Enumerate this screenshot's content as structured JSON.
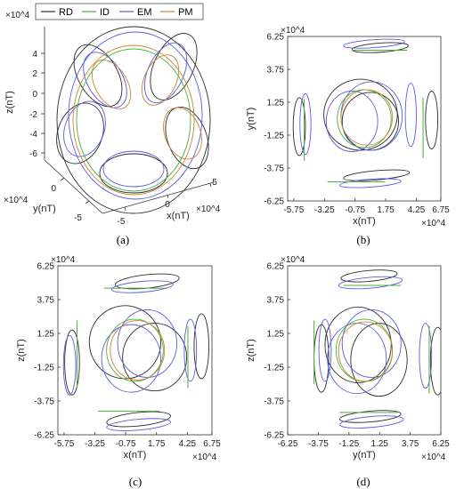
{
  "legend": [
    {
      "label": "RD",
      "color": "#2b2b2b"
    },
    {
      "label": "ID",
      "color": "#4caf3d"
    },
    {
      "label": "EM",
      "color": "#5a5ae6"
    },
    {
      "label": "PM",
      "color": "#c8862e"
    }
  ],
  "chart_data": [
    {
      "type": "line",
      "panel": "(a)",
      "caption": "(a)",
      "projection": "3d",
      "xlabel": "x(nT)",
      "ylabel": "y(nT)",
      "zlabel": "z(nT)",
      "x_ticks": [
        "-5",
        "0",
        "5"
      ],
      "y_ticks": [
        "-5",
        "0"
      ],
      "z_ticks": [
        "4",
        "2",
        "0",
        "-2",
        "-4",
        "-6"
      ],
      "x_multiplier": "×10^4",
      "y_multiplier": "×10^4",
      "z_multiplier": "×10^4",
      "series": [
        {
          "name": "RD",
          "color": "#2b2b2b"
        },
        {
          "name": "ID",
          "color": "#4caf3d"
        },
        {
          "name": "EM",
          "color": "#5a5ae6"
        },
        {
          "name": "PM",
          "color": "#c8862e"
        }
      ]
    },
    {
      "type": "line",
      "panel": "(b)",
      "caption": "(b)",
      "xlabel": "x(nT)",
      "ylabel": "y(nT)",
      "x_multiplier": "×10^4",
      "y_multiplier": "×10^4",
      "xlim": [
        -6.25,
        6.25
      ],
      "ylim": [
        -6.25,
        6.25
      ],
      "x_ticks": [
        "-5.75",
        "-3.25",
        "-0.75",
        "1.75",
        "4.25",
        "6.75"
      ],
      "y_ticks": [
        "6.25",
        "3.75",
        "1.25",
        "-1.25",
        "-3.75",
        "-6.25"
      ],
      "x_tick_values": [
        -5.75,
        -3.25,
        -0.75,
        1.75,
        4.25,
        6.75
      ],
      "y_tick_values": [
        6.25,
        3.75,
        1.25,
        -1.25,
        -3.75,
        -6.25
      ],
      "ellipses": [
        {
          "s": "RD",
          "cx": -0.3,
          "cy": 0.3,
          "rx": 3.0,
          "ry": 2.7,
          "rot": 0
        },
        {
          "s": "RD",
          "cx": 0.5,
          "cy": -0.2,
          "rx": 2.3,
          "ry": 2.2,
          "rot": 0
        },
        {
          "s": "RD",
          "cx": 5.5,
          "cy": -0.1,
          "rx": 0.5,
          "ry": 2.2,
          "rot": 0
        },
        {
          "s": "RD",
          "cx": -5.3,
          "cy": -0.6,
          "rx": 0.5,
          "ry": 2.2,
          "rot": 0
        },
        {
          "s": "RD",
          "cx": 1.3,
          "cy": 5.4,
          "rx": 2.3,
          "ry": 0.35,
          "rot": -4
        },
        {
          "s": "RD",
          "cx": 1.0,
          "cy": -4.3,
          "rx": 2.7,
          "ry": 0.35,
          "rot": -5
        },
        {
          "s": "EM",
          "cx": 0.6,
          "cy": 0.2,
          "rx": 2.5,
          "ry": 2.6,
          "rot": 0
        },
        {
          "s": "EM",
          "cx": -1.0,
          "cy": -0.2,
          "rx": 2.1,
          "ry": 2.3,
          "rot": 0
        },
        {
          "s": "EM",
          "cx": 3.8,
          "cy": 0.3,
          "rx": 0.45,
          "ry": 2.4,
          "rot": 0
        },
        {
          "s": "EM",
          "cx": -4.8,
          "cy": -0.4,
          "rx": 0.45,
          "ry": 2.3,
          "rot": 0
        },
        {
          "s": "EM",
          "cx": 0.8,
          "cy": 5.7,
          "rx": 2.5,
          "ry": 0.3,
          "rot": -4
        },
        {
          "s": "EM",
          "cx": 0.5,
          "cy": -4.9,
          "rx": 2.5,
          "ry": 0.3,
          "rot": -4
        },
        {
          "s": "ID",
          "cx": 0.0,
          "cy": 0.0,
          "rx": 2.2,
          "ry": 2.2,
          "rot": 0
        },
        {
          "s": "PM",
          "cx": 0.2,
          "cy": 0.1,
          "rx": 2.1,
          "ry": 2.1,
          "rot": 0
        }
      ],
      "lines": [
        {
          "s": "ID",
          "x1": -4.9,
          "y1": 1.5,
          "x2": -4.9,
          "y2": -3.2
        },
        {
          "s": "ID",
          "x1": 4.8,
          "y1": 1.6,
          "x2": 4.8,
          "y2": -3.0
        },
        {
          "s": "ID",
          "x1": -1.0,
          "y1": 5.2,
          "x2": 3.5,
          "y2": 5.2
        },
        {
          "s": "ID",
          "x1": -3.0,
          "y1": -4.8,
          "x2": 1.7,
          "y2": -4.8
        }
      ]
    },
    {
      "type": "line",
      "panel": "(c)",
      "caption": "(c)",
      "xlabel": "x(nT)",
      "ylabel": "z(nT)",
      "x_multiplier": "×10^4",
      "y_multiplier": "×10^4",
      "xlim": [
        -6.25,
        6.25
      ],
      "ylim": [
        -6.25,
        6.25
      ],
      "x_ticks": [
        "-5.75",
        "-3.25",
        "-0.75",
        "1.75",
        "4.25",
        "6.75"
      ],
      "y_ticks": [
        "6.25",
        "3.75",
        "1.25",
        "-1.25",
        "-3.75",
        "-6.25"
      ],
      "x_tick_values": [
        -5.75,
        -3.25,
        -0.75,
        1.75,
        4.25,
        6.75
      ],
      "y_tick_values": [
        6.25,
        3.75,
        1.25,
        -1.25,
        -3.75,
        -6.25
      ],
      "ellipses": [
        {
          "s": "RD",
          "cx": -0.8,
          "cy": 0.6,
          "rx": 2.9,
          "ry": 2.7,
          "rot": 0
        },
        {
          "s": "RD",
          "cx": 1.6,
          "cy": -0.5,
          "rx": 2.6,
          "ry": 2.5,
          "rot": 0
        },
        {
          "s": "RD",
          "cx": 5.4,
          "cy": 0.3,
          "rx": 0.6,
          "ry": 2.4,
          "rot": 0
        },
        {
          "s": "RD",
          "cx": -5.1,
          "cy": -0.9,
          "rx": 0.6,
          "ry": 2.4,
          "rot": 0
        },
        {
          "s": "RD",
          "cx": 1.0,
          "cy": 5.1,
          "rx": 2.6,
          "ry": 0.5,
          "rot": -6
        },
        {
          "s": "RD",
          "cx": 0.3,
          "cy": -5.1,
          "rx": 2.6,
          "ry": 0.5,
          "rot": -6
        },
        {
          "s": "EM",
          "cx": 1.0,
          "cy": 0.5,
          "rx": 2.4,
          "ry": 2.5,
          "rot": 0
        },
        {
          "s": "EM",
          "cx": -0.3,
          "cy": -0.6,
          "rx": 2.4,
          "ry": 2.5,
          "rot": 0
        },
        {
          "s": "EM",
          "cx": 4.5,
          "cy": 0.0,
          "rx": 0.5,
          "ry": 2.3,
          "rot": 0
        },
        {
          "s": "EM",
          "cx": -5.3,
          "cy": -1.1,
          "rx": 0.5,
          "ry": 2.2,
          "rot": 0
        },
        {
          "s": "EM",
          "cx": 0.6,
          "cy": 4.7,
          "rx": 2.5,
          "ry": 0.4,
          "rot": -5
        },
        {
          "s": "EM",
          "cx": 0.3,
          "cy": -5.5,
          "rx": 2.6,
          "ry": 0.4,
          "rot": -5
        },
        {
          "s": "ID",
          "cx": 0.0,
          "cy": 0.0,
          "rx": 2.3,
          "ry": 2.3,
          "rot": 0
        },
        {
          "s": "PM",
          "cx": 0.2,
          "cy": 0.0,
          "rx": 2.2,
          "ry": 2.2,
          "rot": 0
        }
      ],
      "lines": [
        {
          "s": "ID",
          "x1": -4.7,
          "y1": 2.2,
          "x2": -4.7,
          "y2": -2.7
        },
        {
          "s": "ID",
          "x1": 4.3,
          "y1": 1.8,
          "x2": 4.3,
          "y2": -2.8
        },
        {
          "s": "ID",
          "x1": -2.5,
          "y1": 4.6,
          "x2": 2.6,
          "y2": 4.6
        },
        {
          "s": "ID",
          "x1": -3.0,
          "y1": -4.5,
          "x2": 2.0,
          "y2": -4.5
        }
      ]
    },
    {
      "type": "line",
      "panel": "(d)",
      "caption": "(d)",
      "xlabel": "y(nT)",
      "ylabel": "z(nT)",
      "x_multiplier": "×10^4",
      "y_multiplier": "×10^4",
      "xlim": [
        -6.25,
        6.25
      ],
      "ylim": [
        -6.25,
        6.25
      ],
      "x_ticks": [
        "-6.25",
        "-3.75",
        "-1.25",
        "1.25",
        "3.75",
        "6.25"
      ],
      "y_ticks": [
        "6.25",
        "3.75",
        "1.25",
        "-1.25",
        "-3.75",
        "-6.25"
      ],
      "x_tick_values": [
        -6.25,
        -3.75,
        -1.25,
        1.25,
        3.75,
        6.25
      ],
      "y_tick_values": [
        6.25,
        3.75,
        1.25,
        -1.25,
        -3.75,
        -6.25
      ],
      "ellipses": [
        {
          "s": "RD",
          "cx": -0.5,
          "cy": 0.4,
          "rx": 2.7,
          "ry": 2.8,
          "rot": 0
        },
        {
          "s": "RD",
          "cx": 1.2,
          "cy": -0.7,
          "rx": 2.3,
          "ry": 2.7,
          "rot": 0
        },
        {
          "s": "RD",
          "cx": 6.0,
          "cy": -0.8,
          "rx": 0.6,
          "ry": 2.5,
          "rot": 0
        },
        {
          "s": "RD",
          "cx": -3.5,
          "cy": -0.6,
          "rx": 0.6,
          "ry": 2.5,
          "rot": 0
        },
        {
          "s": "RD",
          "cx": 0.4,
          "cy": 5.5,
          "rx": 2.3,
          "ry": 0.4,
          "rot": -5
        },
        {
          "s": "RD",
          "cx": 0.5,
          "cy": -4.9,
          "rx": 2.5,
          "ry": 0.4,
          "rot": -5
        },
        {
          "s": "EM",
          "cx": 0.6,
          "cy": 0.5,
          "rx": 2.4,
          "ry": 2.5,
          "rot": 0
        },
        {
          "s": "EM",
          "cx": -0.6,
          "cy": -0.6,
          "rx": 2.4,
          "ry": 2.6,
          "rot": 0
        },
        {
          "s": "EM",
          "cx": 5.0,
          "cy": -0.4,
          "rx": 0.5,
          "ry": 2.4,
          "rot": 0
        },
        {
          "s": "EM",
          "cx": -3.2,
          "cy": 0.0,
          "rx": 0.5,
          "ry": 2.3,
          "rot": 0
        },
        {
          "s": "EM",
          "cx": 0.5,
          "cy": 5.0,
          "rx": 2.6,
          "ry": 0.4,
          "rot": -5
        },
        {
          "s": "EM",
          "cx": 0.6,
          "cy": -5.3,
          "rx": 2.6,
          "ry": 0.4,
          "rot": -5
        },
        {
          "s": "ID",
          "cx": 0.0,
          "cy": 0.0,
          "rx": 2.3,
          "ry": 2.3,
          "rot": 0
        },
        {
          "s": "PM",
          "cx": 0.1,
          "cy": -0.1,
          "rx": 2.2,
          "ry": 2.2,
          "rot": 0
        }
      ],
      "lines": [
        {
          "s": "ID",
          "x1": -4.1,
          "y1": 2.2,
          "x2": -4.1,
          "y2": -2.5
        },
        {
          "s": "ID",
          "x1": 5.3,
          "y1": 1.8,
          "x2": 5.3,
          "y2": -3.2
        },
        {
          "s": "ID",
          "x1": -1.7,
          "y1": 4.8,
          "x2": 3.0,
          "y2": 4.8
        },
        {
          "s": "ID",
          "x1": -2.0,
          "y1": -4.6,
          "x2": 2.7,
          "y2": -4.6
        }
      ]
    }
  ]
}
